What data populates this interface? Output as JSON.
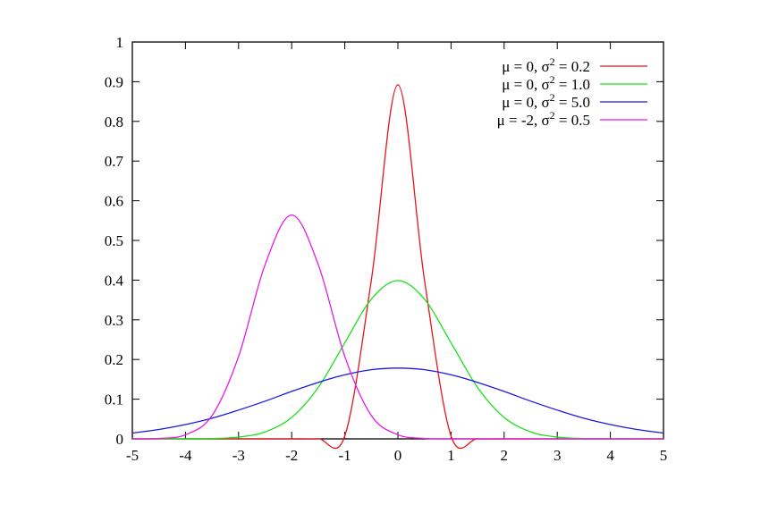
{
  "chart_data": {
    "type": "line",
    "title": "",
    "xlabel": "",
    "ylabel": "",
    "xlim": [
      -5,
      5
    ],
    "ylim": [
      0,
      1
    ],
    "grid": false,
    "legend_position": "top-right",
    "x_ticks": [
      "-5",
      "-4",
      "-3",
      "-2",
      "-1",
      "0",
      "1",
      "2",
      "3",
      "4",
      "5"
    ],
    "y_ticks": [
      "0",
      "0.1",
      "0.2",
      "0.3",
      "0.4",
      "0.5",
      "0.6",
      "0.7",
      "0.8",
      "0.9",
      "1"
    ],
    "x": [
      -5,
      -4.5,
      -4,
      -3.5,
      -3,
      -2.5,
      -2,
      -1.5,
      -1,
      -0.5,
      0,
      0.5,
      1,
      1.5,
      2,
      2.5,
      3,
      3.5,
      4,
      4.5,
      5
    ],
    "series": [
      {
        "name": "μ = 0, σ2 = 0.2",
        "mu_text": "0",
        "sigma2_text": "0.2",
        "color": "#e8141b",
        "values": [
          0,
          0,
          0,
          0,
          0,
          0,
          0,
          0.0003,
          0.0073,
          0.4,
          0.892,
          0.4,
          0.0073,
          0.0003,
          0,
          0,
          0,
          0,
          0,
          0,
          0
        ]
      },
      {
        "name": "μ = 0, σ2 = 1.0",
        "mu_text": "0",
        "sigma2_text": "1.0",
        "color": "#19e019",
        "values": [
          0,
          0,
          0.0001,
          0.0009,
          0.0044,
          0.0175,
          0.054,
          0.1295,
          0.242,
          0.352,
          0.399,
          0.352,
          0.242,
          0.1295,
          0.054,
          0.0175,
          0.0044,
          0.0009,
          0.0001,
          0,
          0
        ]
      },
      {
        "name": "μ = 0, σ2 = 5.0",
        "mu_text": "0",
        "sigma2_text": "5.0",
        "color": "#1a1ae0",
        "values": [
          0.0146,
          0.0236,
          0.036,
          0.052,
          0.0725,
          0.095,
          0.1196,
          0.1423,
          0.1614,
          0.1742,
          0.1784,
          0.1742,
          0.1614,
          0.1423,
          0.1196,
          0.095,
          0.0725,
          0.052,
          0.036,
          0.0236,
          0.0146
        ]
      },
      {
        "name": "μ = -2, σ2 = 0.5",
        "mu_text": "-2",
        "sigma2_text": "0.5",
        "color": "#e619e6",
        "values": [
          0,
          0.0011,
          0.0103,
          0.0586,
          0.2076,
          0.4393,
          0.5642,
          0.4393,
          0.2076,
          0.0586,
          0.0103,
          0.0011,
          0,
          0,
          0,
          0,
          0,
          0,
          0,
          0,
          0
        ]
      }
    ]
  }
}
